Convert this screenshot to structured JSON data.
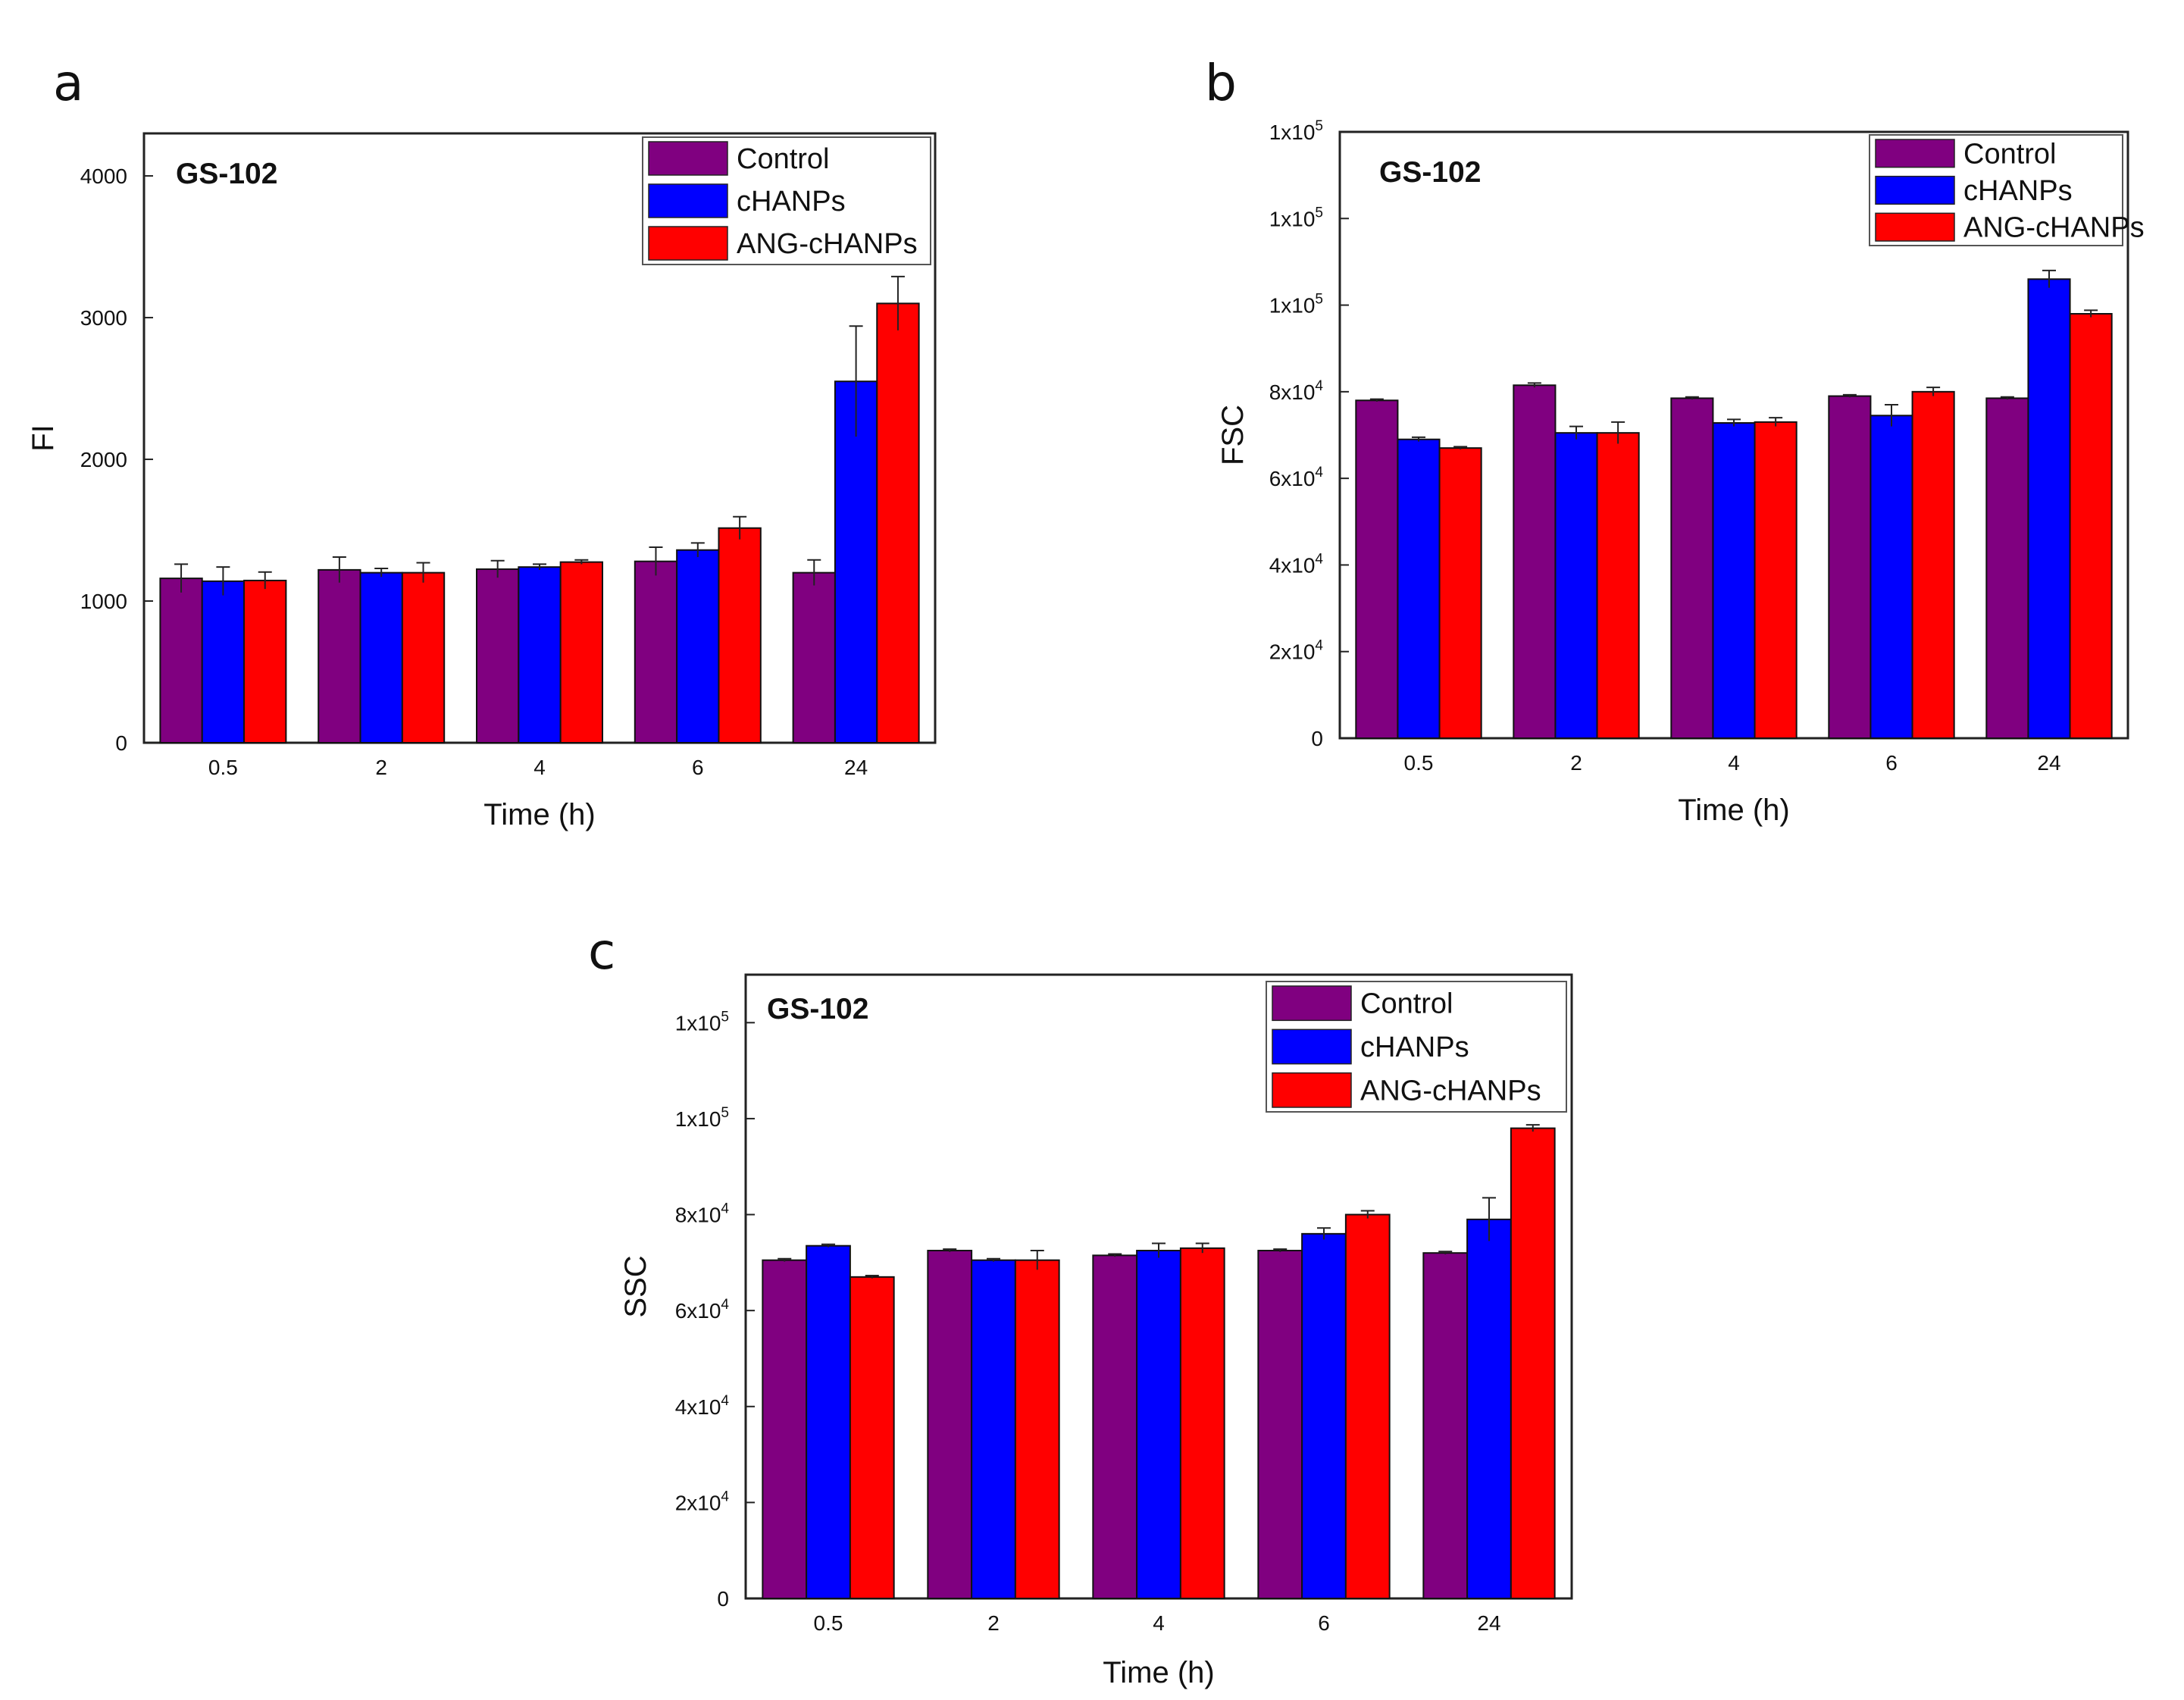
{
  "figure": {
    "panels": [
      {
        "letter": "a",
        "cell_label": "GS-102"
      },
      {
        "letter": "b",
        "cell_label": "GS-102"
      },
      {
        "letter": "c",
        "cell_label": "GS-102"
      }
    ]
  },
  "colors": {
    "Control": "#800080",
    "cHANPs": "#0000ff",
    "ANG-cHANPs": "#ff0000"
  },
  "chart_data": [
    {
      "type": "bar",
      "panel": "a",
      "title": "",
      "annotation": "GS-102",
      "xlabel": "Time (h)",
      "ylabel": "FI",
      "categories": [
        "0.5",
        "2",
        "4",
        "6",
        "24"
      ],
      "ylim": [
        0,
        4300
      ],
      "yticks": [
        {
          "value": 0,
          "base": "0",
          "exp": ""
        },
        {
          "value": 1000,
          "base": "1000",
          "exp": ""
        },
        {
          "value": 2000,
          "base": "2000",
          "exp": ""
        },
        {
          "value": 3000,
          "base": "3000",
          "exp": ""
        },
        {
          "value": 4000,
          "base": "4000",
          "exp": ""
        }
      ],
      "legend": {
        "position": "top-right",
        "entries": [
          "Control",
          "cHANPs",
          "ANG-cHANPs"
        ]
      },
      "series": [
        {
          "name": "Control",
          "values": [
            1160,
            1220,
            1225,
            1280,
            1200
          ],
          "errors": [
            100,
            90,
            60,
            100,
            90
          ]
        },
        {
          "name": "cHANPs",
          "values": [
            1140,
            1200,
            1240,
            1360,
            2550
          ],
          "errors": [
            100,
            30,
            20,
            50,
            390
          ]
        },
        {
          "name": "ANG-cHANPs",
          "values": [
            1145,
            1200,
            1275,
            1515,
            3100
          ],
          "errors": [
            60,
            70,
            15,
            80,
            190
          ]
        }
      ]
    },
    {
      "type": "bar",
      "panel": "b",
      "title": "",
      "annotation": "GS-102",
      "xlabel": "Time (h)",
      "ylabel": "FSC",
      "categories": [
        "0.5",
        "2",
        "4",
        "6",
        "24"
      ],
      "ylim": [
        0,
        140000
      ],
      "yticks": [
        {
          "value": 0,
          "base": "0",
          "exp": ""
        },
        {
          "value": 20000,
          "base": "2x10",
          "exp": "4"
        },
        {
          "value": 40000,
          "base": "4x10",
          "exp": "4"
        },
        {
          "value": 60000,
          "base": "6x10",
          "exp": "4"
        },
        {
          "value": 80000,
          "base": "8x10",
          "exp": "4"
        },
        {
          "value": 100000,
          "base": "1x10",
          "exp": "5"
        },
        {
          "value": 120000,
          "base": "1x10",
          "exp": "5"
        },
        {
          "value": 140000,
          "base": "1x10",
          "exp": "5"
        }
      ],
      "legend": {
        "position": "top-right",
        "entries": [
          "Control",
          "cHANPs",
          "ANG-cHANPs"
        ]
      },
      "series": [
        {
          "name": "Control",
          "values": [
            78000,
            81500,
            78500,
            79000,
            78500
          ],
          "errors": [
            300,
            500,
            300,
            300,
            300
          ]
        },
        {
          "name": "cHANPs",
          "values": [
            69000,
            70500,
            72800,
            74500,
            106000
          ],
          "errors": [
            500,
            1500,
            800,
            2500,
            2000
          ]
        },
        {
          "name": "ANG-cHANPs",
          "values": [
            67000,
            70500,
            73000,
            80000,
            98000
          ],
          "errors": [
            300,
            2500,
            1000,
            1000,
            800
          ]
        }
      ]
    },
    {
      "type": "bar",
      "panel": "c",
      "title": "",
      "annotation": "GS-102",
      "xlabel": "Time (h)",
      "ylabel": "SSC",
      "categories": [
        "0.5",
        "2",
        "4",
        "6",
        "24"
      ],
      "ylim": [
        0,
        130000
      ],
      "yticks": [
        {
          "value": 0,
          "base": "0",
          "exp": ""
        },
        {
          "value": 20000,
          "base": "2x10",
          "exp": "4"
        },
        {
          "value": 40000,
          "base": "4x10",
          "exp": "4"
        },
        {
          "value": 60000,
          "base": "6x10",
          "exp": "4"
        },
        {
          "value": 80000,
          "base": "8x10",
          "exp": "4"
        },
        {
          "value": 100000,
          "base": "1x10",
          "exp": "5"
        },
        {
          "value": 120000,
          "base": "1x10",
          "exp": "5"
        }
      ],
      "legend": {
        "position": "top-right",
        "entries": [
          "Control",
          "cHANPs",
          "ANG-cHANPs"
        ]
      },
      "series": [
        {
          "name": "Control",
          "values": [
            70500,
            72500,
            71500,
            72500,
            72000
          ],
          "errors": [
            300,
            300,
            300,
            300,
            300
          ]
        },
        {
          "name": "cHANPs",
          "values": [
            73500,
            70500,
            72500,
            76000,
            79000
          ],
          "errors": [
            300,
            300,
            1500,
            1200,
            4500
          ]
        },
        {
          "name": "ANG-cHANPs",
          "values": [
            67000,
            70500,
            73000,
            80000,
            98000
          ],
          "errors": [
            300,
            2000,
            1000,
            800,
            700
          ]
        }
      ]
    }
  ]
}
